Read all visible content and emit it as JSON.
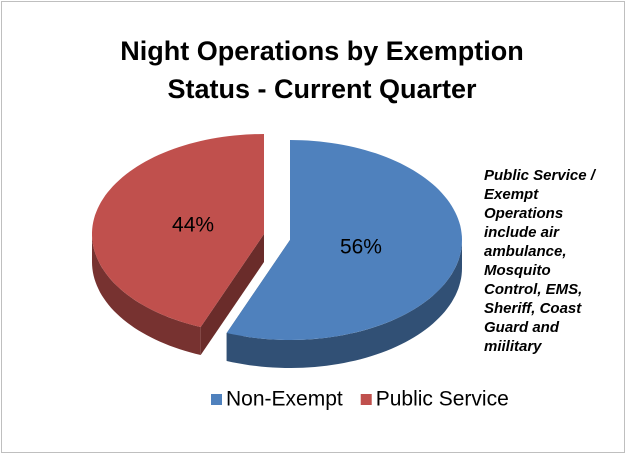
{
  "chart_data": {
    "type": "pie",
    "title": "Night Operations by Exemption Status - Current Quarter",
    "annotation": "Public Service / Exempt Operations include air ambulance, Mosquito Control, EMS, Sheriff, Coast Guard and miilitary",
    "categories": [
      "Non-Exempt",
      "Public Service"
    ],
    "values": [
      56,
      44
    ],
    "value_labels": [
      "56%",
      "44%"
    ],
    "colors": [
      "#4f81bd",
      "#c0504d"
    ],
    "legend": "bottom"
  }
}
